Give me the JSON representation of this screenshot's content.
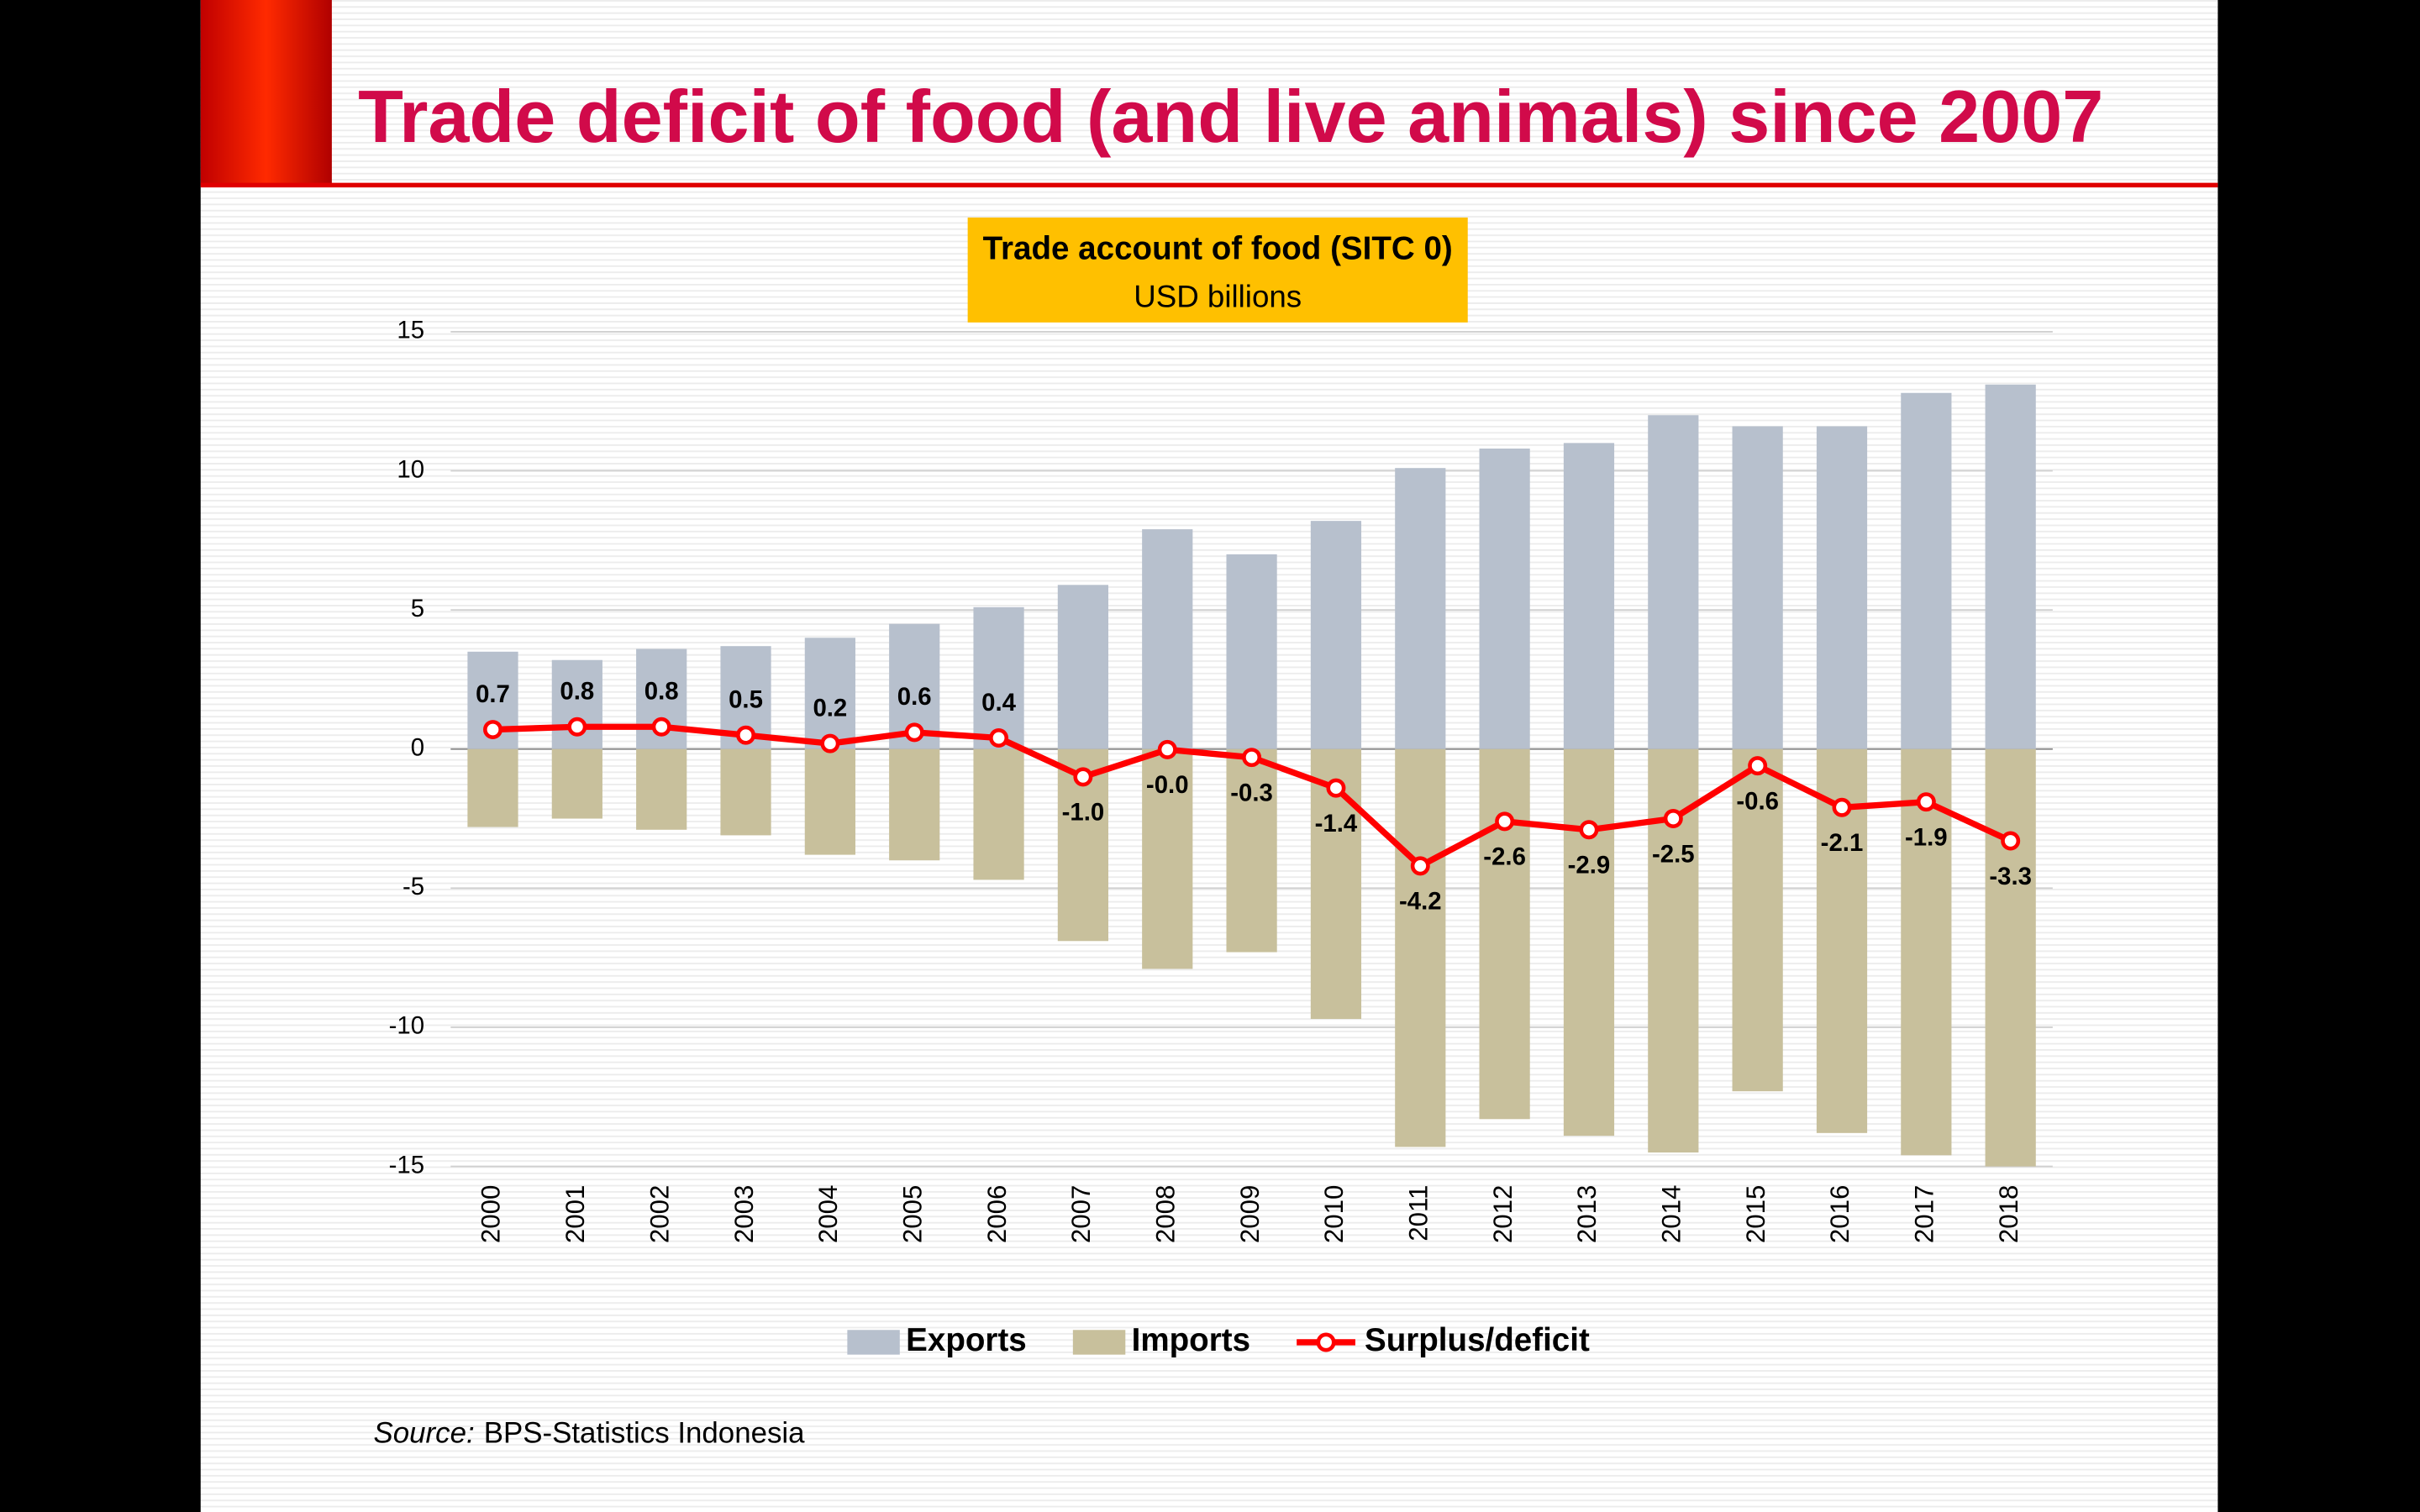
{
  "header": {
    "title": "Trade deficit of food (and live animals) since 2007"
  },
  "chart_data": {
    "type": "bar",
    "title": "Trade account of food (SITC 0)",
    "subtitle": "USD billions",
    "categories": [
      "2000",
      "2001",
      "2002",
      "2003",
      "2004",
      "2005",
      "2006",
      "2007",
      "2008",
      "2009",
      "2010",
      "2011",
      "2012",
      "2013",
      "2014",
      "2015",
      "2016",
      "2017",
      "2018"
    ],
    "series": [
      {
        "name": "Exports",
        "type": "bar",
        "color": "#b7c0cd",
        "values": [
          3.5,
          3.2,
          3.6,
          3.7,
          4.0,
          4.5,
          5.1,
          5.9,
          7.9,
          7.0,
          8.2,
          10.1,
          10.8,
          11.0,
          12.0,
          11.6,
          11.6,
          12.8,
          13.1
        ]
      },
      {
        "name": "Imports",
        "type": "bar",
        "color": "#c8c09c",
        "values": [
          -2.8,
          -2.5,
          -2.9,
          -3.1,
          -3.8,
          -4.0,
          -4.7,
          -6.9,
          -7.9,
          -7.3,
          -9.7,
          -14.3,
          -13.3,
          -13.9,
          -14.5,
          -12.3,
          -13.8,
          -14.6,
          -15.0
        ]
      },
      {
        "name": "Surplus/deficit",
        "type": "line",
        "color": "#ff0000",
        "values": [
          0.7,
          0.8,
          0.8,
          0.5,
          0.2,
          0.6,
          0.4,
          -1.0,
          -0.02,
          -0.3,
          -1.4,
          -4.2,
          -2.6,
          -2.9,
          -2.5,
          -0.6,
          -2.1,
          -1.9,
          -3.3
        ],
        "value_labels": [
          "0.7",
          "0.8",
          "0.8",
          "0.5",
          "0.2",
          "0.6",
          "0.4",
          "-1.0",
          "-0.0",
          "-0.3",
          "-1.4",
          "-4.2",
          "-2.6",
          "-2.9",
          "-2.5",
          "-0.6",
          "-2.1",
          "-1.9",
          "-3.3"
        ]
      }
    ],
    "ylim": [
      -15,
      15
    ],
    "yticks": [
      15,
      10,
      5,
      0,
      -5,
      -10,
      -15
    ],
    "grid": true,
    "legend": "bottom"
  },
  "source": {
    "label": "Source:",
    "text": "BPS-Statistics Indonesia"
  }
}
